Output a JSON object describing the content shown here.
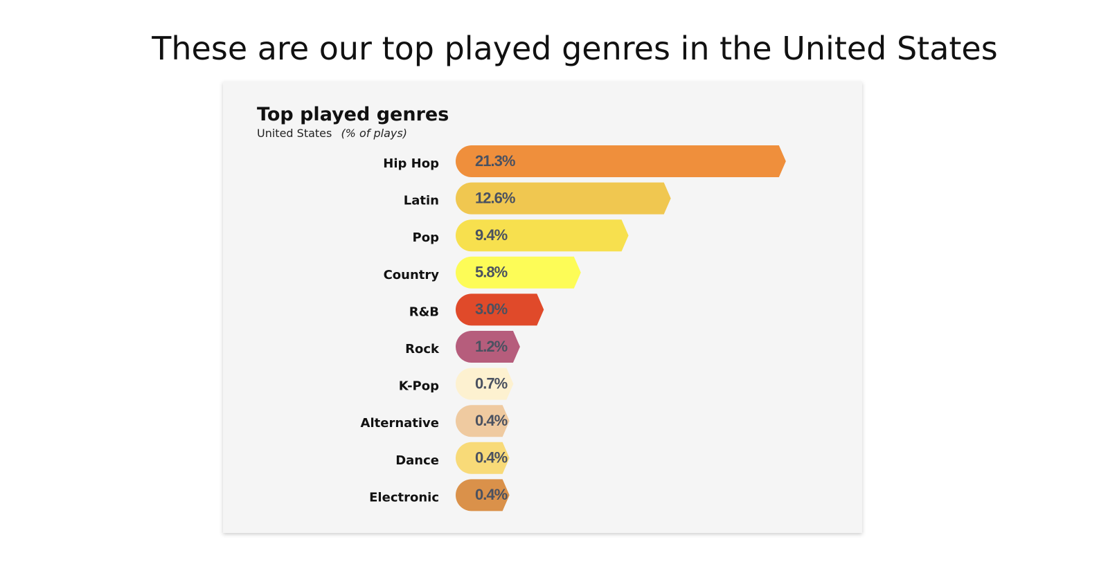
{
  "heading": "These are our top played genres in the United States",
  "chart_data": {
    "type": "bar",
    "orientation": "horizontal",
    "title": "Top played genres",
    "subtitle": "United States",
    "unit_note": "(% of plays)",
    "categories": [
      "Hip Hop",
      "Latin",
      "Pop",
      "Country",
      "R&B",
      "Rock",
      "K-Pop",
      "Alternative",
      "Dance",
      "Electronic"
    ],
    "values": [
      21.3,
      12.6,
      9.4,
      5.8,
      3.0,
      1.2,
      0.7,
      0.4,
      0.4,
      0.4
    ],
    "value_labels": [
      "21.3%",
      "12.6%",
      "9.4%",
      "5.8%",
      "3.0%",
      "1.2%",
      "0.7%",
      "0.4%",
      "0.4%",
      "0.4%"
    ],
    "colors": [
      "#ef8f3c",
      "#f0c750",
      "#f7e04e",
      "#fdfc57",
      "#e04a2a",
      "#b65d7c",
      "#fdf1d0",
      "#efcaa0",
      "#f8da78",
      "#da914a"
    ]
  }
}
